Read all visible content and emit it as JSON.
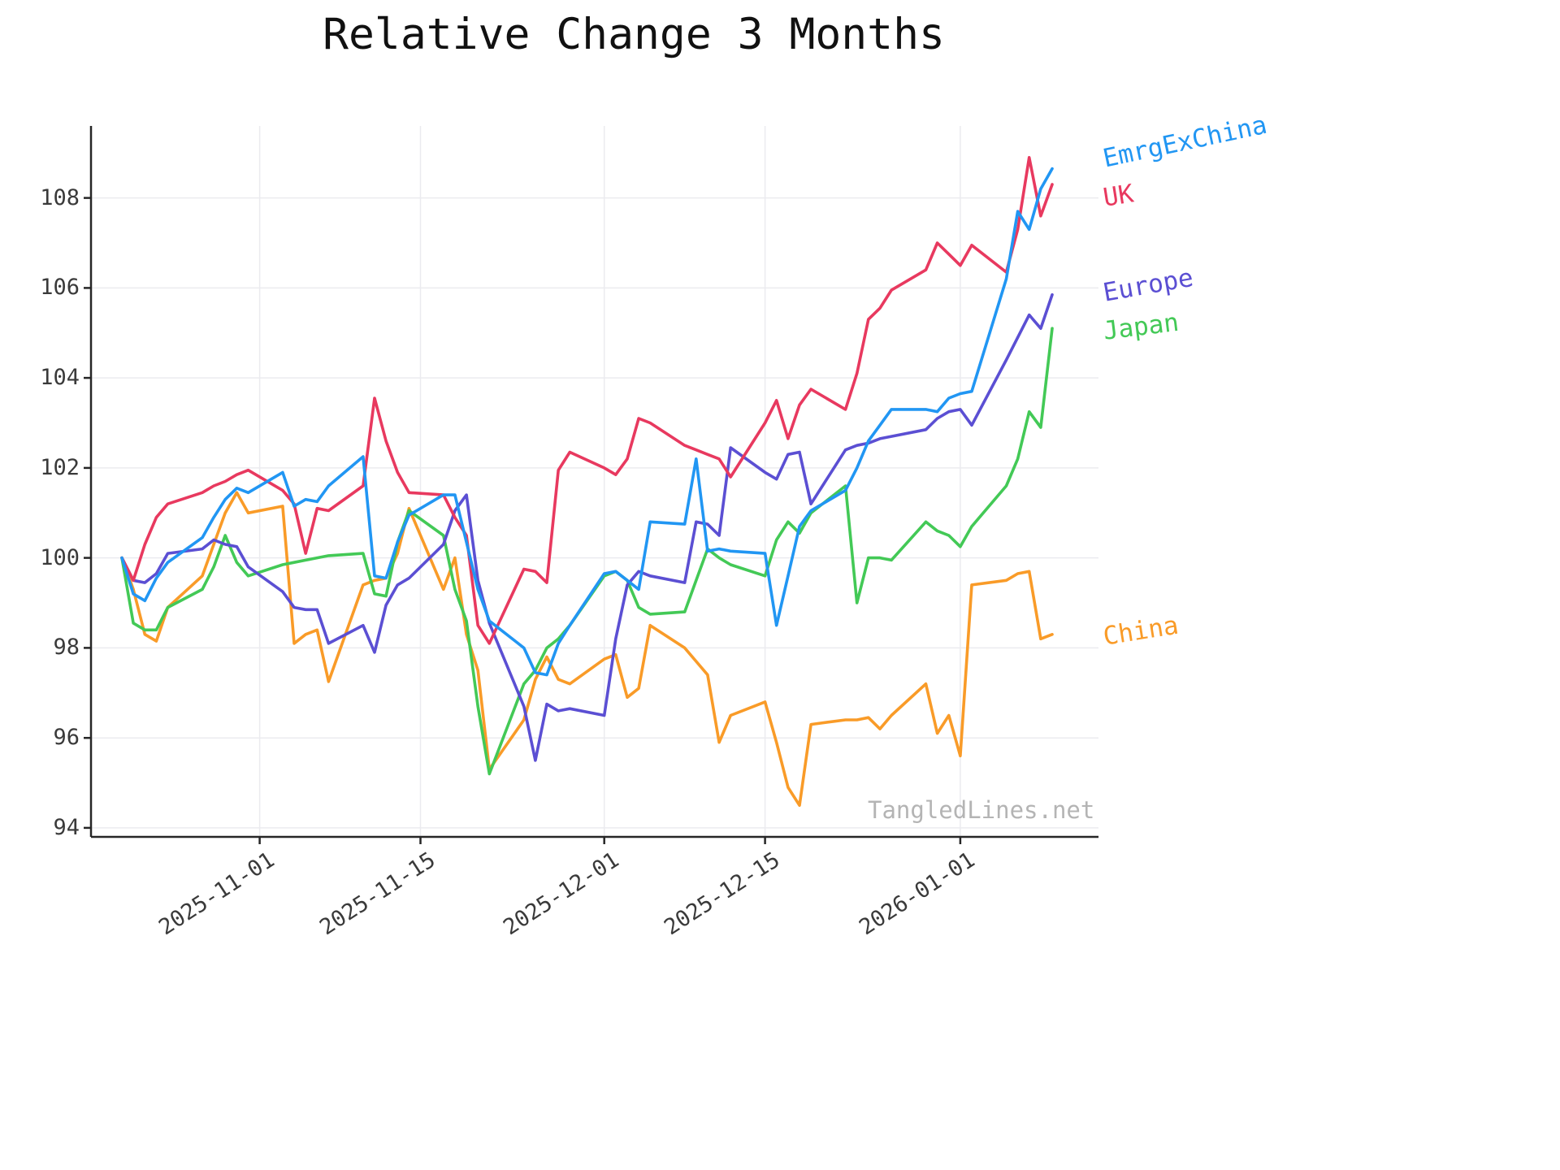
{
  "title": "Relative Change 3 Months",
  "watermark": "TangledLines.net",
  "chart_data": {
    "type": "line",
    "title": "Relative Change 3 Months",
    "xlabel": "",
    "ylabel": "",
    "grid": true,
    "legend_position": "end-labels-right",
    "ylim": [
      93.8,
      109.6
    ],
    "yticks": [
      94,
      96,
      98,
      100,
      102,
      104,
      106,
      108
    ],
    "xticks": [
      "2025-11-01",
      "2025-11-15",
      "2025-12-01",
      "2025-12-15",
      "2026-01-01"
    ],
    "x": [
      "2025-10-20",
      "2025-10-21",
      "2025-10-22",
      "2025-10-23",
      "2025-10-24",
      "2025-10-27",
      "2025-10-28",
      "2025-10-29",
      "2025-10-30",
      "2025-10-31",
      "2025-11-03",
      "2025-11-04",
      "2025-11-05",
      "2025-11-06",
      "2025-11-07",
      "2025-11-10",
      "2025-11-11",
      "2025-11-12",
      "2025-11-13",
      "2025-11-14",
      "2025-11-17",
      "2025-11-18",
      "2025-11-19",
      "2025-11-20",
      "2025-11-21",
      "2025-11-24",
      "2025-11-25",
      "2025-11-26",
      "2025-11-27",
      "2025-11-28",
      "2025-12-01",
      "2025-12-02",
      "2025-12-03",
      "2025-12-04",
      "2025-12-05",
      "2025-12-08",
      "2025-12-09",
      "2025-12-10",
      "2025-12-11",
      "2025-12-12",
      "2025-12-15",
      "2025-12-16",
      "2025-12-17",
      "2025-12-18",
      "2025-12-19",
      "2025-12-22",
      "2025-12-23",
      "2025-12-24",
      "2025-12-25",
      "2025-12-26",
      "2025-12-29",
      "2025-12-30",
      "2025-12-31",
      "2026-01-01",
      "2026-01-02",
      "2026-01-05",
      "2026-01-06",
      "2026-01-07",
      "2026-01-08",
      "2026-01-09"
    ],
    "series": [
      {
        "name": "EmrgExChina",
        "color": "#2196f3",
        "values": [
          100.0,
          99.2,
          99.05,
          99.55,
          99.9,
          100.45,
          100.9,
          101.3,
          101.55,
          101.45,
          101.9,
          101.15,
          101.3,
          101.25,
          101.6,
          102.25,
          99.6,
          99.55,
          100.35,
          100.95,
          101.4,
          101.4,
          100.35,
          99.3,
          98.6,
          98.0,
          97.45,
          97.4,
          98.1,
          98.5,
          99.65,
          99.7,
          99.5,
          99.3,
          100.8,
          100.75,
          102.2,
          100.15,
          100.2,
          100.15,
          100.1,
          98.5,
          99.6,
          100.7,
          101.05,
          101.5,
          102.0,
          102.6,
          102.95,
          103.3,
          103.3,
          103.25,
          103.55,
          103.65,
          103.7,
          106.2,
          107.7,
          107.3,
          108.2,
          108.65
        ]
      },
      {
        "name": "UK",
        "color": "#e8395f",
        "values": [
          100.0,
          99.5,
          100.3,
          100.9,
          101.2,
          101.45,
          101.6,
          101.7,
          101.85,
          101.95,
          101.5,
          101.2,
          100.1,
          101.1,
          101.05,
          101.6,
          103.55,
          102.6,
          101.9,
          101.45,
          101.4,
          100.9,
          100.5,
          98.5,
          98.1,
          99.75,
          99.7,
          99.45,
          101.95,
          102.35,
          102.0,
          101.85,
          102.2,
          103.1,
          103.0,
          102.5,
          102.4,
          102.3,
          102.2,
          101.8,
          103.0,
          103.5,
          102.65,
          103.4,
          103.75,
          103.3,
          104.1,
          105.3,
          105.55,
          105.95,
          106.4,
          107.0,
          106.75,
          106.5,
          106.95,
          106.35,
          107.3,
          108.9,
          107.6,
          108.3
        ]
      },
      {
        "name": "Europe",
        "color": "#5b4fd3",
        "values": [
          100.0,
          99.5,
          99.45,
          99.65,
          100.1,
          100.2,
          100.4,
          100.3,
          100.25,
          99.8,
          99.25,
          98.9,
          98.85,
          98.85,
          98.1,
          98.5,
          97.9,
          98.95,
          99.4,
          99.55,
          100.3,
          101.05,
          101.4,
          99.5,
          98.55,
          96.7,
          95.5,
          96.75,
          96.6,
          96.65,
          96.5,
          98.2,
          99.4,
          99.7,
          99.6,
          99.45,
          100.8,
          100.75,
          100.5,
          102.45,
          101.9,
          101.75,
          102.3,
          102.35,
          101.2,
          102.4,
          102.5,
          102.55,
          102.65,
          102.7,
          102.85,
          103.1,
          103.25,
          103.3,
          102.95,
          104.4,
          104.9,
          105.4,
          105.1,
          105.85
        ]
      },
      {
        "name": "Japan",
        "color": "#43c956",
        "values": [
          100.0,
          98.55,
          98.4,
          98.4,
          98.9,
          99.3,
          99.8,
          100.5,
          99.9,
          99.6,
          99.85,
          99.9,
          99.95,
          100.0,
          100.05,
          100.1,
          99.2,
          99.15,
          100.35,
          101.05,
          100.5,
          99.3,
          98.6,
          96.7,
          95.2,
          97.2,
          97.5,
          98.0,
          98.2,
          98.5,
          99.6,
          99.7,
          99.5,
          98.9,
          98.75,
          98.8,
          99.5,
          100.2,
          100.0,
          99.85,
          99.6,
          100.4,
          100.8,
          100.55,
          101.0,
          101.6,
          99.0,
          100.0,
          100.0,
          99.95,
          100.8,
          100.6,
          100.5,
          100.25,
          100.7,
          101.6,
          102.2,
          103.25,
          102.9,
          105.1
        ]
      },
      {
        "name": "China",
        "color": "#f99b28",
        "values": [
          100.0,
          99.3,
          98.3,
          98.15,
          98.9,
          99.6,
          100.3,
          101.0,
          101.45,
          101.0,
          101.15,
          98.1,
          98.3,
          98.4,
          97.25,
          99.4,
          99.5,
          99.55,
          100.1,
          101.1,
          99.3,
          100.0,
          98.3,
          97.5,
          95.3,
          96.4,
          97.3,
          97.8,
          97.3,
          97.2,
          97.75,
          97.85,
          96.9,
          97.1,
          98.5,
          98.0,
          97.7,
          97.4,
          95.9,
          96.5,
          96.8,
          95.9,
          94.9,
          94.5,
          96.3,
          96.4,
          96.4,
          96.45,
          96.2,
          96.5,
          97.2,
          96.1,
          96.5,
          95.6,
          99.4,
          99.5,
          99.65,
          99.7,
          98.2,
          98.3
        ]
      }
    ]
  }
}
